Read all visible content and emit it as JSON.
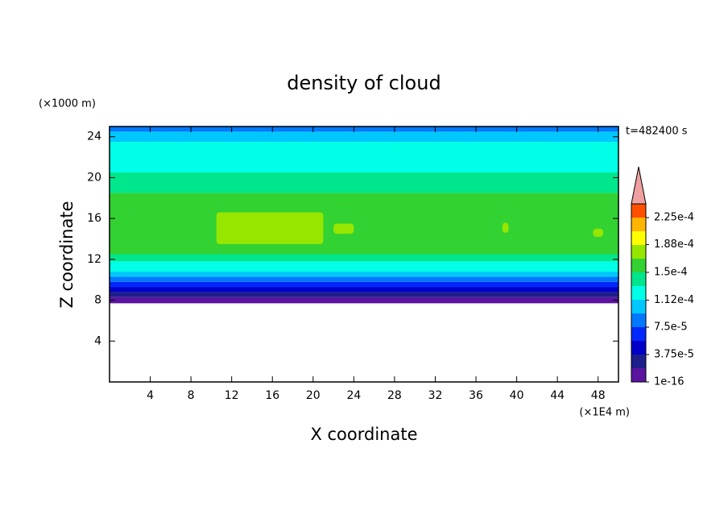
{
  "chart_data": {
    "type": "contour",
    "title": "density of cloud",
    "xlabel": "X coordinate",
    "ylabel": "Z coordinate",
    "xunit": "(×1E4 m)",
    "yunit": "(×1000 m)",
    "annotation": "t=482400 s",
    "xlim": [
      0,
      50
    ],
    "ylim": [
      0,
      25
    ],
    "xticks": [
      4,
      8,
      12,
      16,
      20,
      24,
      28,
      32,
      36,
      40,
      44,
      48
    ],
    "yticks": [
      4,
      8,
      12,
      16,
      20,
      24
    ],
    "z": [
      7.7,
      8.3,
      8.8,
      9.3,
      9.8,
      10.3,
      10.8,
      11.8,
      12.5,
      18.5,
      20.5,
      23.5,
      24.5,
      25
    ],
    "values": [
      1e-05,
      2.5e-05,
      4.5e-05,
      6.5e-05,
      8.5e-05,
      0.0001,
      0.00012,
      0.00014,
      0.00016,
      0.00014,
      0.00012,
      0.0001,
      8.5e-05
    ],
    "patches": [
      {
        "x": [
          10.5,
          21
        ],
        "z": [
          13.5,
          16.6
        ],
        "value": 0.000175
      },
      {
        "x": [
          22,
          24
        ],
        "z": [
          14.5,
          15.5
        ],
        "value": 0.000175
      },
      {
        "x": [
          38.6,
          39.2
        ],
        "z": [
          14.6,
          15.6
        ],
        "value": 0.000175
      },
      {
        "x": [
          47.5,
          48.5
        ],
        "z": [
          14.2,
          15
        ],
        "value": 0.000175
      }
    ],
    "levels": [
      1e-16,
      1.875e-05,
      3.75e-05,
      5.625e-05,
      7.5e-05,
      9.375e-05,
      0.0001125,
      0.00013125,
      0.00015,
      0.00016875,
      0.0001875,
      0.00020625,
      0.000225,
      0.00024375
    ],
    "colors": [
      "#5a14a0",
      "#1e1e8c",
      "#0000c8",
      "#0028ff",
      "#0078ff",
      "#00c8ff",
      "#00ffe6",
      "#00e68c",
      "#32d232",
      "#96e600",
      "#ffff00",
      "#ffb400",
      "#ff5000"
    ],
    "over_color": "#f0a0a0",
    "cticks": [
      {
        "value": 1e-16,
        "label": "1e-16"
      },
      {
        "value": 3.75e-05,
        "label": "3.75e-5"
      },
      {
        "value": 7.5e-05,
        "label": "7.5e-5"
      },
      {
        "value": 0.000112,
        "label": "1.12e-4"
      },
      {
        "value": 0.00015,
        "label": "1.5e-4"
      },
      {
        "value": 0.000188,
        "label": "1.88e-4"
      },
      {
        "value": 0.000225,
        "label": "2.25e-4"
      }
    ]
  }
}
